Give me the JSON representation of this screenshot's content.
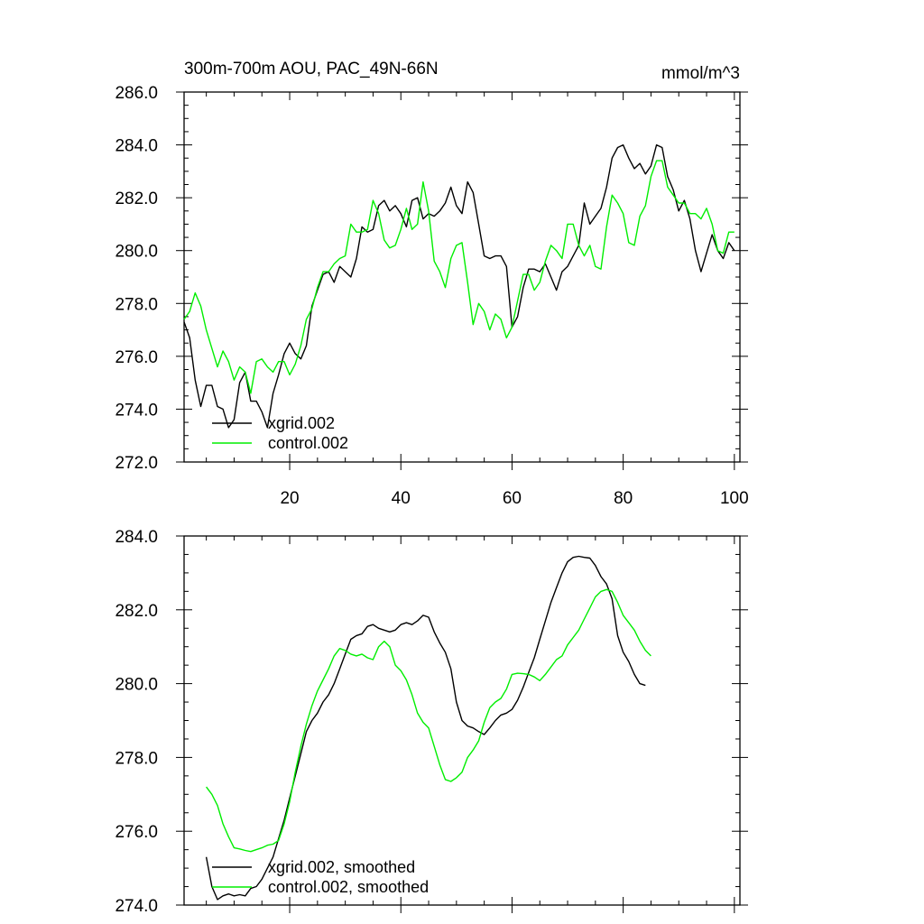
{
  "chart_data": [
    {
      "type": "line",
      "title": "300m-700m AOU, PAC_49N-66N",
      "units": "mmol/m^3",
      "xlim": [
        1,
        101
      ],
      "ylim": [
        272,
        286
      ],
      "xticks": [
        20,
        40,
        60,
        80,
        100
      ],
      "xtick_labels": [
        "20",
        "40",
        "60",
        "80",
        "100"
      ],
      "yticks": [
        272,
        274,
        276,
        278,
        280,
        282,
        284,
        286
      ],
      "ytick_labels": [
        "272.0",
        "274.0",
        "276.0",
        "278.0",
        "280.0",
        "282.0",
        "284.0",
        "286.0"
      ],
      "grid": false,
      "legend": "bottom-left",
      "x_start": 1,
      "series": [
        {
          "name": "xgrid.002",
          "color": "#000000",
          "values": [
            277.3,
            276.7,
            275.1,
            274.1,
            274.9,
            274.9,
            274.1,
            274.0,
            273.3,
            273.6,
            275.0,
            275.4,
            274.3,
            274.3,
            273.9,
            273.3,
            274.6,
            275.3,
            276.1,
            276.5,
            276.1,
            275.9,
            276.4,
            277.9,
            278.5,
            279.1,
            279.2,
            278.8,
            279.4,
            279.2,
            279.0,
            279.7,
            280.9,
            280.7,
            280.8,
            281.7,
            281.9,
            281.5,
            281.7,
            281.4,
            280.9,
            281.9,
            282.0,
            281.2,
            281.4,
            281.3,
            281.5,
            281.8,
            282.4,
            281.7,
            281.4,
            282.6,
            282.2,
            281.0,
            279.8,
            279.7,
            279.8,
            279.8,
            279.4,
            277.1,
            277.5,
            278.6,
            279.3,
            279.3,
            279.2,
            279.5,
            279.0,
            278.5,
            279.2,
            279.4,
            279.8,
            280.2,
            281.8,
            281.0,
            281.3,
            281.6,
            282.4,
            283.5,
            283.9,
            284.0,
            283.5,
            283.1,
            283.3,
            282.9,
            283.2,
            284.0,
            283.9,
            282.8,
            282.3,
            281.5,
            281.9,
            281.2,
            280.0,
            279.2,
            279.9,
            280.6,
            280.0,
            279.7,
            280.3,
            280.0
          ]
        },
        {
          "name": "control.002",
          "color": "#00ee00",
          "values": [
            277.4,
            277.7,
            278.4,
            277.9,
            277.0,
            276.3,
            275.6,
            276.2,
            275.8,
            275.1,
            275.6,
            275.4,
            274.6,
            275.8,
            275.9,
            275.6,
            275.4,
            275.8,
            275.8,
            275.3,
            275.7,
            276.4,
            277.4,
            277.8,
            278.6,
            279.2,
            279.2,
            279.5,
            279.7,
            279.8,
            281.0,
            280.7,
            280.7,
            280.8,
            281.9,
            281.4,
            280.4,
            280.1,
            280.2,
            280.8,
            281.6,
            280.8,
            281.0,
            282.6,
            281.5,
            279.6,
            279.2,
            278.6,
            279.7,
            280.2,
            280.3,
            278.8,
            277.2,
            278.0,
            277.7,
            277.0,
            277.6,
            277.4,
            276.7,
            277.1,
            278.1,
            279.1,
            279.1,
            278.5,
            278.8,
            279.6,
            280.2,
            280.0,
            279.7,
            281.0,
            281.0,
            280.2,
            279.8,
            280.2,
            279.4,
            279.3,
            280.9,
            282.1,
            281.8,
            281.4,
            280.3,
            280.2,
            281.3,
            281.7,
            282.8,
            283.4,
            283.4,
            282.4,
            282.1,
            281.8,
            281.8,
            281.4,
            281.4,
            281.2,
            281.6,
            281.0,
            280.0,
            279.9,
            280.7,
            280.7
          ]
        }
      ]
    },
    {
      "type": "line",
      "title": "",
      "xlim": [
        1,
        101
      ],
      "ylim": [
        274,
        284
      ],
      "xticks": [
        20,
        40,
        60,
        80,
        100
      ],
      "xtick_labels": [],
      "yticks": [
        274,
        276,
        278,
        280,
        282,
        284
      ],
      "ytick_labels": [
        "274.0",
        "276.0",
        "278.0",
        "280.0",
        "282.0",
        "284.0"
      ],
      "grid": false,
      "legend": "bottom-left",
      "x_start": 5,
      "series": [
        {
          "name": "xgrid.002, smoothed",
          "color": "#000000",
          "values": [
            275.3,
            274.5,
            274.15,
            274.25,
            274.3,
            274.25,
            274.28,
            274.25,
            274.45,
            274.5,
            274.7,
            275.0,
            275.3,
            275.8,
            276.3,
            276.9,
            277.5,
            278.1,
            278.7,
            279.0,
            279.2,
            279.5,
            279.7,
            280.0,
            280.4,
            280.8,
            281.2,
            281.3,
            281.35,
            281.55,
            281.6,
            281.5,
            281.45,
            281.4,
            281.45,
            281.6,
            281.65,
            281.6,
            281.7,
            281.85,
            281.8,
            281.4,
            281.1,
            280.85,
            280.4,
            279.5,
            279.0,
            278.85,
            278.8,
            278.7,
            278.62,
            278.8,
            279.0,
            279.15,
            279.2,
            279.3,
            279.55,
            279.9,
            280.3,
            280.7,
            281.2,
            281.7,
            282.2,
            282.6,
            283.0,
            283.3,
            283.42,
            283.45,
            283.42,
            283.4,
            283.2,
            282.9,
            282.7,
            282.3,
            281.3,
            280.85,
            280.6,
            280.25,
            280.0,
            279.95
          ]
        },
        {
          "name": "control.002, smoothed",
          "color": "#00ee00",
          "values": [
            277.2,
            277.0,
            276.7,
            276.2,
            275.85,
            275.55,
            275.52,
            275.48,
            275.45,
            275.5,
            275.55,
            275.62,
            275.65,
            275.75,
            276.2,
            276.8,
            277.6,
            278.3,
            278.9,
            279.4,
            279.8,
            280.1,
            280.4,
            280.75,
            280.95,
            280.9,
            280.8,
            280.75,
            280.8,
            280.7,
            280.65,
            281.0,
            281.15,
            281.0,
            280.5,
            280.35,
            280.1,
            279.7,
            279.2,
            278.95,
            278.8,
            278.3,
            277.8,
            277.4,
            277.35,
            277.45,
            277.6,
            278.0,
            278.2,
            278.45,
            278.95,
            279.35,
            279.5,
            279.6,
            279.85,
            280.25,
            280.28,
            280.27,
            280.25,
            280.18,
            280.08,
            280.25,
            280.45,
            280.65,
            280.75,
            281.05,
            281.25,
            281.45,
            281.75,
            282.05,
            282.35,
            282.5,
            282.55,
            282.5,
            282.2,
            281.85,
            281.65,
            281.45,
            281.15,
            280.9,
            280.75
          ]
        }
      ]
    }
  ]
}
